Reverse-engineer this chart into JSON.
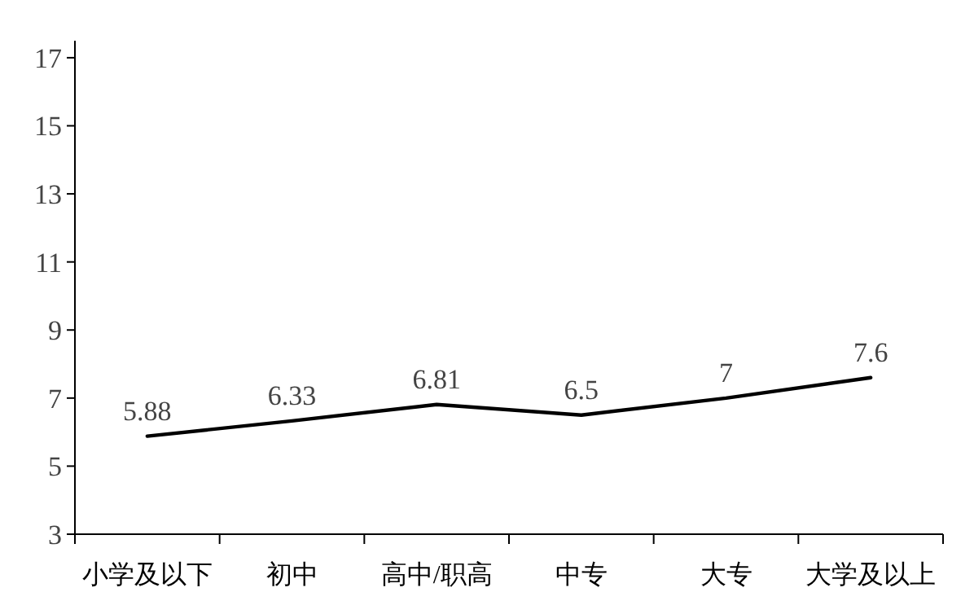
{
  "chart_data": {
    "type": "line",
    "categories": [
      "小学及以下",
      "初中",
      "高中/职高",
      "中专",
      "大专",
      "大学及以上"
    ],
    "values": [
      5.88,
      6.33,
      6.81,
      6.5,
      7,
      7.6
    ],
    "color": "#000000",
    "ylim": [
      3,
      17.5
    ],
    "yticks": [
      3,
      5,
      7,
      9,
      11,
      13,
      15,
      17
    ],
    "data_labels": true,
    "marker": "none",
    "line_style": "solid"
  }
}
